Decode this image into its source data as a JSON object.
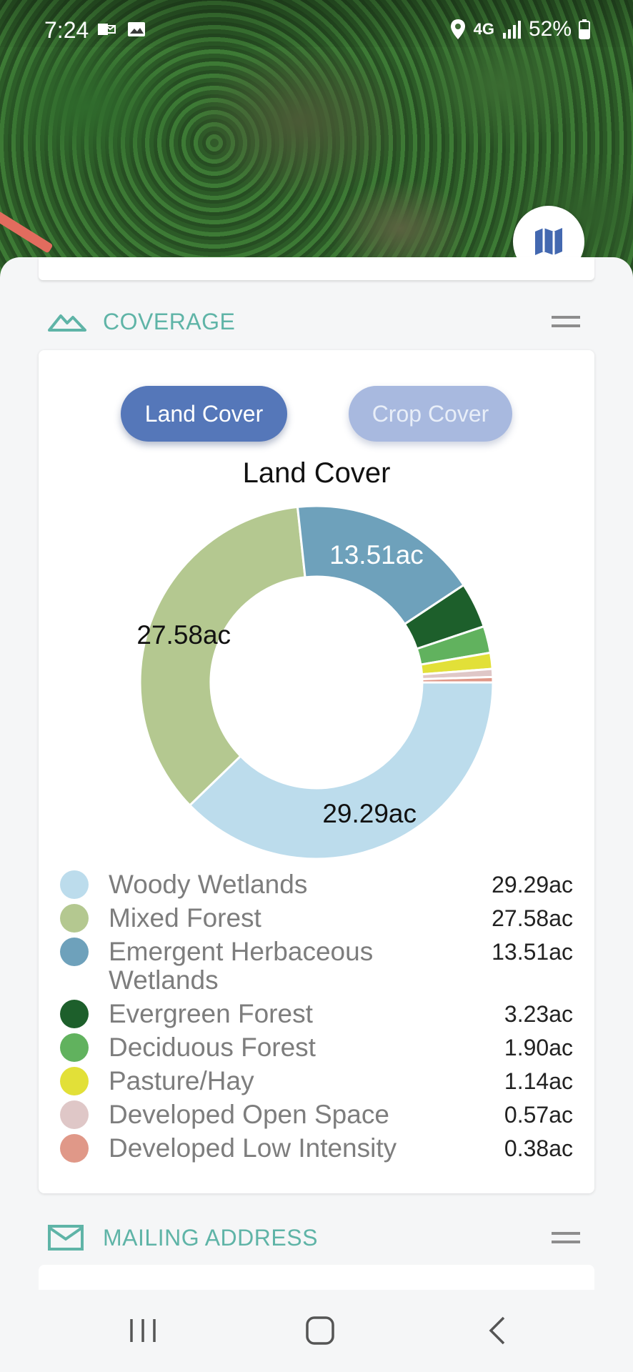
{
  "status_bar": {
    "time": "7:24",
    "network": "4G",
    "battery": "52%"
  },
  "sections": {
    "coverage": {
      "title": "COVERAGE",
      "icon": "mountain-icon"
    },
    "mailing": {
      "title": "MAILING ADDRESS",
      "icon": "mail-icon"
    }
  },
  "coverage": {
    "tabs": {
      "land": "Land Cover",
      "crop": "Crop Cover"
    },
    "chart_title": "Land Cover"
  },
  "chart_data": {
    "type": "pie",
    "title": "Land Cover",
    "donut": true,
    "unit": "ac",
    "categories": [
      "Woody Wetlands",
      "Mixed Forest",
      "Emergent Herbaceous Wetlands",
      "Evergreen Forest",
      "Deciduous Forest",
      "Pasture/Hay",
      "Developed Open Space",
      "Developed Low Intensity"
    ],
    "values": [
      29.29,
      27.58,
      13.51,
      3.23,
      1.9,
      1.14,
      0.57,
      0.38
    ],
    "value_labels": [
      "29.29ac",
      "27.58ac",
      "13.51ac",
      "3.23ac",
      "1.90ac",
      "1.14ac",
      "0.57ac",
      "0.38ac"
    ],
    "colors": [
      "#bcdcec",
      "#b4c890",
      "#6ea1bb",
      "#1d5f2b",
      "#61b25e",
      "#e2e038",
      "#dfc7c7",
      "#e09888"
    ],
    "legend_position": "bottom"
  },
  "nav": {
    "recent": "recent-apps-icon",
    "home": "home-icon",
    "back": "back-icon"
  }
}
